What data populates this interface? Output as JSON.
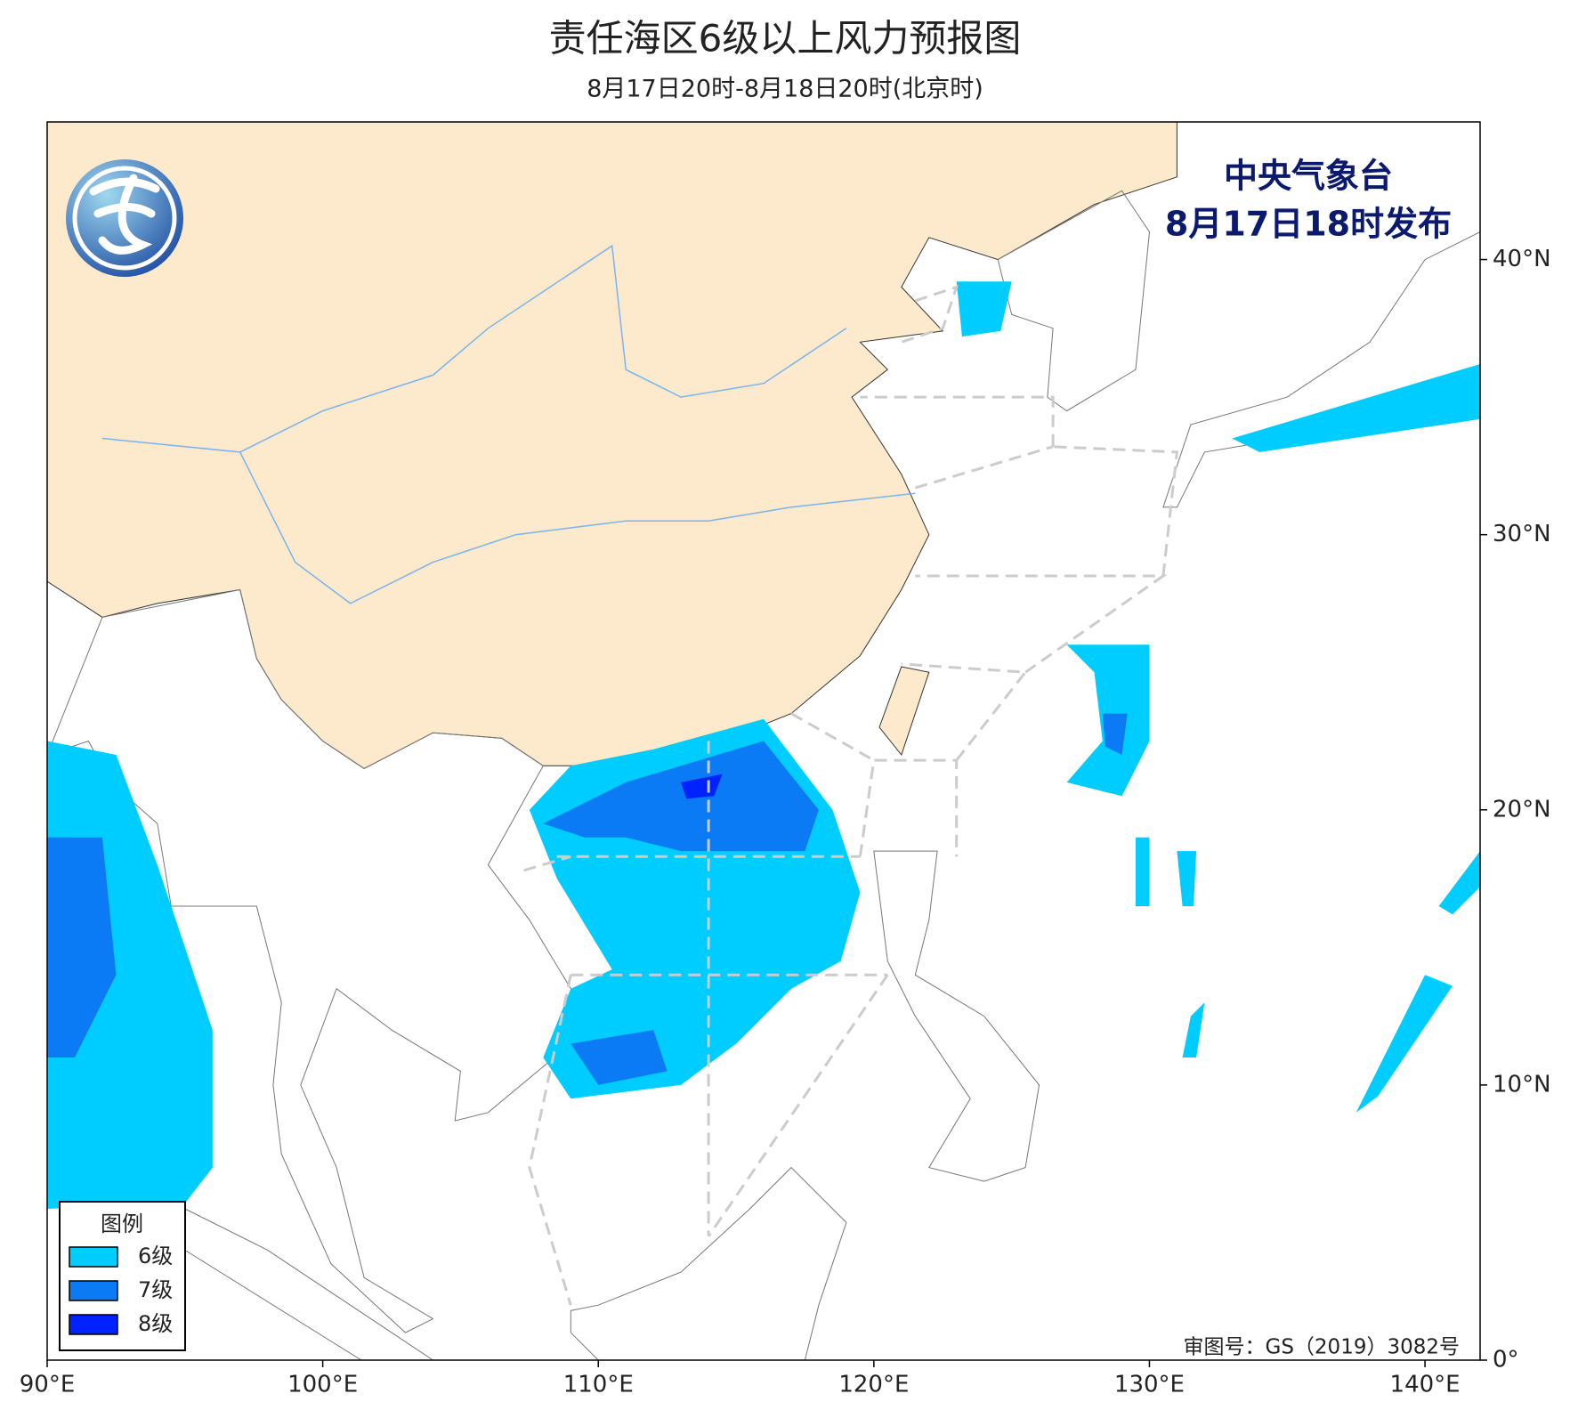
{
  "title": "责任海区6级以上风力预报图",
  "subtitle": "8月17日20时-8月18日20时(北京时)",
  "issuer": [
    "中央气象台",
    "8月17日18时发布"
  ],
  "legend": {
    "title": "图例",
    "items": [
      {
        "label": "6级",
        "color": "#00cdff"
      },
      {
        "label": "7级",
        "color": "#0a7af5"
      },
      {
        "label": "8级",
        "color": "#0022ff"
      }
    ]
  },
  "approval": "审图号：GS（2019）3082号",
  "map": {
    "xlim": [
      90,
      142
    ],
    "ylim": [
      0,
      45
    ],
    "xticks": [
      {
        "value": 90,
        "label": "90°E"
      },
      {
        "value": 100,
        "label": "100°E"
      },
      {
        "value": 110,
        "label": "110°E"
      },
      {
        "value": 120,
        "label": "120°E"
      },
      {
        "value": 130,
        "label": "130°E"
      },
      {
        "value": 140,
        "label": "140°E"
      }
    ],
    "yticks": [
      {
        "value": 0,
        "label": "0°"
      },
      {
        "value": 10,
        "label": "10°N"
      },
      {
        "value": 20,
        "label": "20°N"
      },
      {
        "value": 30,
        "label": "30°N"
      },
      {
        "value": 40,
        "label": "40°N"
      }
    ]
  }
}
